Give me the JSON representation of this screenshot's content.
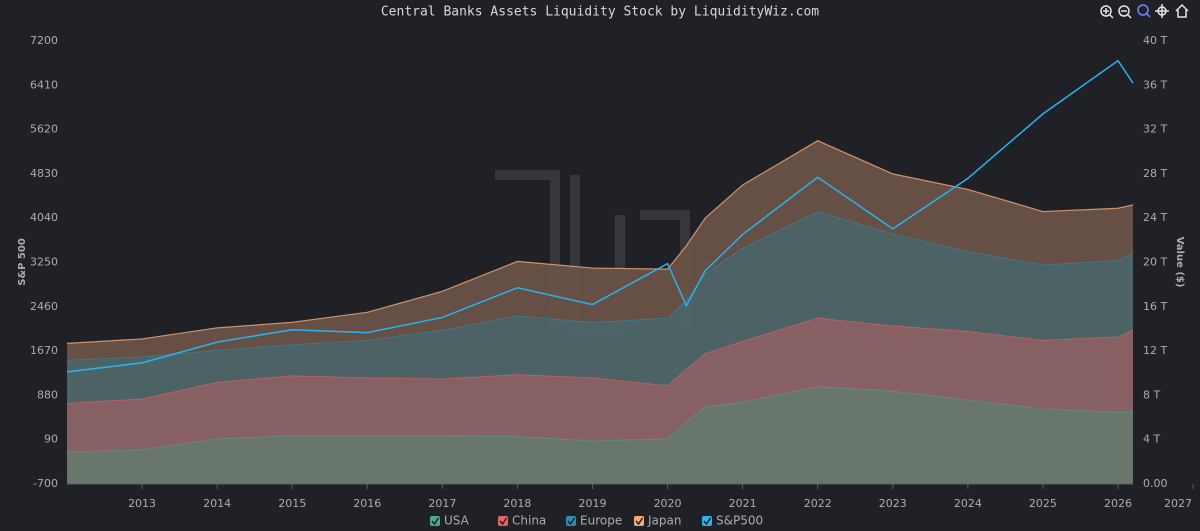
{
  "chart_data": {
    "type": "stacked-area-line",
    "title": "Central Banks Assets Liquidity Stock by LiquidityWiz.com",
    "y_label": "S&P 500",
    "y2_label": "Value ($)",
    "x": [
      2012.0,
      2013,
      2014,
      2015,
      2016,
      2017,
      2018,
      2019,
      2020,
      2020.25,
      2020.5,
      2021,
      2022,
      2023,
      2024,
      2025,
      2026,
      2026.2
    ],
    "xlim": [
      2012.0,
      2026.2
    ],
    "xticks": [
      2013,
      2014,
      2015,
      2016,
      2017,
      2018,
      2019,
      2020,
      2021,
      2022,
      2023,
      2024,
      2025,
      2026,
      2027
    ],
    "ylim": [
      -700,
      7200
    ],
    "yticks": [
      -700,
      90,
      880,
      1670,
      2460,
      3250,
      4040,
      4830,
      5620,
      6410,
      7200
    ],
    "y2lim": [
      0,
      40
    ],
    "y2ticks": [
      {
        "value": 0,
        "label": "0.00"
      },
      {
        "value": 4,
        "label": "4 T"
      },
      {
        "value": 8,
        "label": "8 T"
      },
      {
        "value": 12,
        "label": "12 T"
      },
      {
        "value": 16,
        "label": "16 T"
      },
      {
        "value": 20,
        "label": "20 T"
      },
      {
        "value": 24,
        "label": "24 T"
      },
      {
        "value": 28,
        "label": "28 T"
      },
      {
        "value": 32,
        "label": "32 T"
      },
      {
        "value": 36,
        "label": "36 T"
      },
      {
        "value": 40,
        "label": "40 T"
      }
    ],
    "legend": "bottom",
    "series": [
      {
        "name": "USA",
        "color": "#4fa88c",
        "fill": "#6e7b6f",
        "axis": "y2",
        "stacked": true,
        "values": [
          2.9,
          3.1,
          4.1,
          4.4,
          4.4,
          4.4,
          4.3,
          3.9,
          4.1,
          5.6,
          7.0,
          7.4,
          8.8,
          8.4,
          7.6,
          6.8,
          6.5,
          6.5
        ]
      },
      {
        "name": "China",
        "color": "#e86464",
        "fill": "#8d6466",
        "axis": "y2",
        "stacked": true,
        "values": [
          4.4,
          4.6,
          5.1,
          5.4,
          5.2,
          5.1,
          5.6,
          5.7,
          4.8,
          4.8,
          4.8,
          5.5,
          6.2,
          5.9,
          6.2,
          6.2,
          6.8,
          7.4
        ]
      },
      {
        "name": "Europe",
        "color": "#2f8db3",
        "fill": "#4f6668",
        "axis": "y2",
        "stacked": true,
        "values": [
          3.9,
          3.8,
          2.9,
          2.8,
          3.4,
          4.4,
          5.3,
          5.0,
          6.1,
          6.2,
          7.2,
          8.4,
          9.6,
          8.3,
          7.2,
          6.8,
          6.9,
          7.0
        ]
      },
      {
        "name": "Japan",
        "color": "#f5aa75",
        "fill": "#6a5246",
        "axis": "y2",
        "stacked": true,
        "values": [
          1.5,
          1.6,
          2.0,
          2.0,
          2.5,
          3.5,
          4.9,
          4.9,
          4.4,
          4.9,
          5.0,
          5.7,
          6.4,
          5.4,
          5.6,
          4.8,
          4.7,
          4.3
        ]
      },
      {
        "name": "S&P500",
        "color": "#27b4f0",
        "axis": "y",
        "values": [
          1300,
          1460,
          1830,
          2050,
          2000,
          2270,
          2800,
          2500,
          3230,
          2480,
          3100,
          3750,
          4770,
          3850,
          4750,
          5900,
          6850,
          6450
        ]
      }
    ]
  }
}
